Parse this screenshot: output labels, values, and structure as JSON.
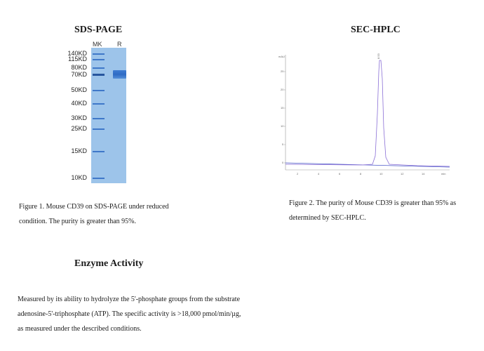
{
  "sds": {
    "title": "SDS-PAGE",
    "lanes": [
      "MK",
      "R"
    ],
    "markers": [
      "140KD",
      "115KD",
      "80KD",
      "70KD",
      "50KD",
      "40KD",
      "30KD",
      "25KD",
      "15KD",
      "10KD"
    ],
    "caption_lines": [
      "Figure 1. Mouse CD39 on SDS-PAGE under reduced",
      "condition. The purity is greater than 95%."
    ]
  },
  "hplc": {
    "title": "SEC-HPLC",
    "caption_lines": [
      "Figure 2. The purity of Mouse CD39 is greater than 95% as",
      "determined by SEC-HPLC."
    ],
    "colors": {
      "trace": "#8a6fd6",
      "baseline": "#4a58c8"
    }
  },
  "enzyme": {
    "title": "Enzyme Activity",
    "lines": [
      "Measured by its ability to hydrolyze the 5'-phosphate groups from the substrate",
      "adenosine-5'-triphosphate (ATP). The specific activity is >18,000 pmol/min/µg,",
      "as measured under the described conditions."
    ]
  }
}
